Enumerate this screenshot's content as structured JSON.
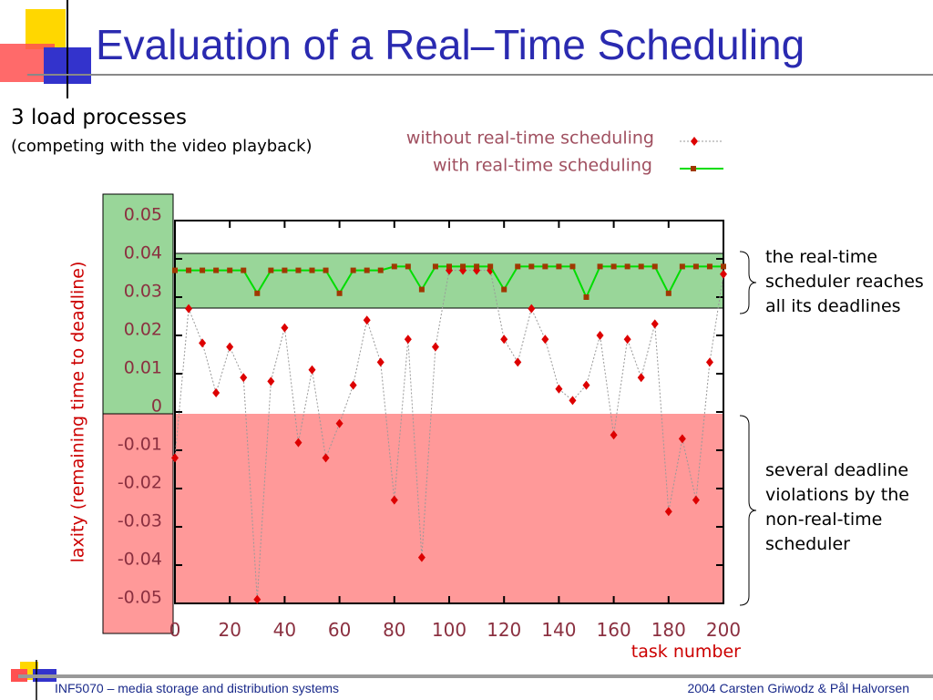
{
  "chart_data": {
    "type": "scatter-line",
    "title": "Evaluation of a Real–Time Scheduling",
    "subtitle": "3 load processes",
    "subtitle2": "(competing with the video playback)",
    "xlabel": "task number",
    "ylabel": "laxity (remaining time to deadline)",
    "x": [
      0,
      5,
      10,
      15,
      20,
      25,
      30,
      35,
      40,
      45,
      50,
      55,
      60,
      65,
      70,
      75,
      80,
      85,
      90,
      95,
      100,
      105,
      110,
      115,
      120,
      125,
      130,
      135,
      140,
      145,
      150,
      155,
      160,
      165,
      170,
      175,
      180,
      185,
      190,
      195,
      200
    ],
    "series": [
      {
        "name": "without real-time scheduling",
        "color": "#dd0000",
        "line_color": "#999999",
        "values": [
          -0.012,
          0.027,
          0.018,
          0.005,
          0.017,
          0.009,
          -0.049,
          0.008,
          0.022,
          -0.008,
          0.011,
          -0.012,
          -0.003,
          0.007,
          0.024,
          0.013,
          -0.023,
          0.019,
          -0.038,
          0.017,
          0.037,
          0.037,
          0.037,
          0.037,
          0.019,
          0.013,
          0.027,
          0.019,
          0.006,
          0.003,
          0.007,
          0.02,
          -0.006,
          0.019,
          0.009,
          0.023,
          -0.026,
          -0.007,
          -0.023,
          0.013,
          0.036
        ]
      },
      {
        "name": "with real-time scheduling",
        "color": "#00dd00",
        "marker_color": "#a03800",
        "values": [
          0.037,
          0.037,
          0.037,
          0.037,
          0.037,
          0.037,
          0.031,
          0.037,
          0.037,
          0.037,
          0.037,
          0.037,
          0.031,
          0.037,
          0.037,
          0.037,
          0.038,
          0.038,
          0.032,
          0.038,
          0.038,
          0.038,
          0.038,
          0.038,
          0.032,
          0.038,
          0.038,
          0.038,
          0.038,
          0.038,
          0.03,
          0.038,
          0.038,
          0.038,
          0.038,
          0.038,
          0.031,
          0.038,
          0.038,
          0.038,
          0.038
        ]
      }
    ],
    "xlim": [
      0,
      200
    ],
    "xticks": [
      0,
      20,
      40,
      60,
      80,
      100,
      120,
      140,
      160,
      180,
      200
    ],
    "ylim": [
      -0.05,
      0.05
    ],
    "yticks": [
      -0.05,
      -0.04,
      -0.03,
      -0.02,
      -0.01,
      0,
      0.01,
      0.02,
      0.03,
      0.04,
      0.05
    ],
    "annotations": [
      "the real-time scheduler reaches all its deadlines",
      "several deadline violations by the non-real-time scheduler"
    ],
    "footer_left": "INF5070 – media storage and distribution systems",
    "footer_right": "2004  Carsten Griwodz & Pål Halvorsen"
  }
}
